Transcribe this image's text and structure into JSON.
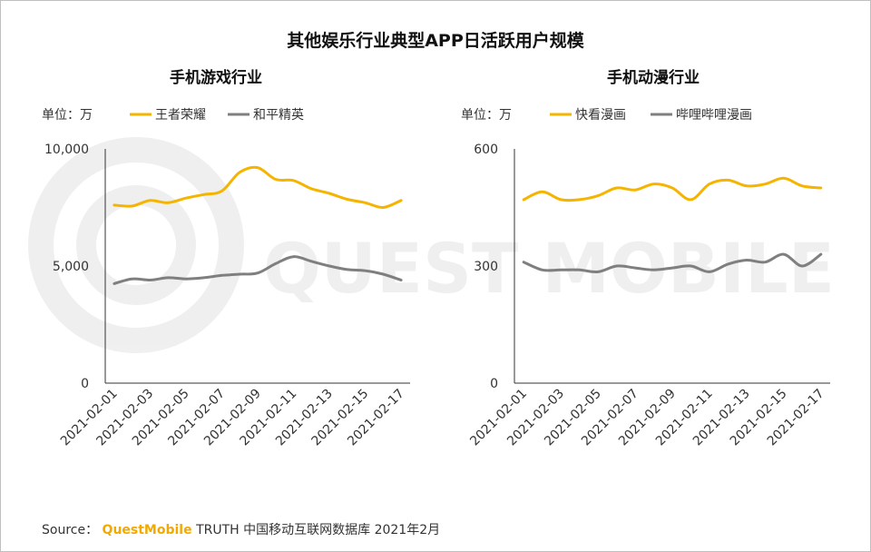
{
  "title": "其他娱乐行业典型APP日活跃用户规模",
  "footer": {
    "prefix": "Source：",
    "brand": "QuestMobile",
    "suffix": "TRUTH 中国移动互联网数据库 2021年2月"
  },
  "watermark": "QUEST MOBILE",
  "colors": {
    "yellow": "#f5b400",
    "gray": "#7f7f7f",
    "axis": "#333333"
  },
  "chart_data": [
    {
      "type": "line",
      "title": "手机游戏行业",
      "unit_label": "单位：万",
      "x": [
        "2021-02-01",
        "2021-02-02",
        "2021-02-03",
        "2021-02-04",
        "2021-02-05",
        "2021-02-06",
        "2021-02-07",
        "2021-02-08",
        "2021-02-09",
        "2021-02-10",
        "2021-02-11",
        "2021-02-12",
        "2021-02-13",
        "2021-02-14",
        "2021-02-15",
        "2021-02-16",
        "2021-02-17"
      ],
      "x_tick_labels": [
        "2021-02-01",
        "2021-02-03",
        "2021-02-05",
        "2021-02-07",
        "2021-02-09",
        "2021-02-11",
        "2021-02-13",
        "2021-02-15",
        "2021-02-17"
      ],
      "ylim": [
        0,
        10000
      ],
      "y_ticks": [
        0,
        5000,
        10000
      ],
      "y_tick_labels": [
        "0",
        "5,000",
        "10,000"
      ],
      "series": [
        {
          "name": "王者荣耀",
          "color": "#f5b400",
          "values": [
            7600,
            7560,
            7800,
            7700,
            7900,
            8050,
            8200,
            9000,
            9200,
            8700,
            8650,
            8300,
            8100,
            7850,
            7700,
            7500,
            7800
          ]
        },
        {
          "name": "和平精英",
          "color": "#7f7f7f",
          "values": [
            4250,
            4450,
            4400,
            4500,
            4450,
            4500,
            4600,
            4650,
            4700,
            5100,
            5400,
            5200,
            5000,
            4850,
            4800,
            4650,
            4400
          ]
        }
      ]
    },
    {
      "type": "line",
      "title": "手机动漫行业",
      "unit_label": "单位：万",
      "x": [
        "2021-02-01",
        "2021-02-02",
        "2021-02-03",
        "2021-02-04",
        "2021-02-05",
        "2021-02-06",
        "2021-02-07",
        "2021-02-08",
        "2021-02-09",
        "2021-02-10",
        "2021-02-11",
        "2021-02-12",
        "2021-02-13",
        "2021-02-14",
        "2021-02-15",
        "2021-02-16",
        "2021-02-17"
      ],
      "x_tick_labels": [
        "2021-02-01",
        "2021-02-03",
        "2021-02-05",
        "2021-02-07",
        "2021-02-09",
        "2021-02-11",
        "2021-02-13",
        "2021-02-15",
        "2021-02-17"
      ],
      "ylim": [
        0,
        600
      ],
      "y_ticks": [
        0,
        300,
        600
      ],
      "y_tick_labels": [
        "0",
        "300",
        "600"
      ],
      "series": [
        {
          "name": "快看漫画",
          "color": "#f5b400",
          "values": [
            470,
            490,
            470,
            470,
            480,
            500,
            495,
            510,
            500,
            470,
            510,
            520,
            505,
            510,
            525,
            505,
            500
          ]
        },
        {
          "name": "哔哩哔哩漫画",
          "color": "#7f7f7f",
          "values": [
            310,
            290,
            290,
            290,
            285,
            300,
            295,
            290,
            295,
            300,
            285,
            305,
            315,
            310,
            330,
            300,
            330
          ]
        }
      ]
    }
  ]
}
